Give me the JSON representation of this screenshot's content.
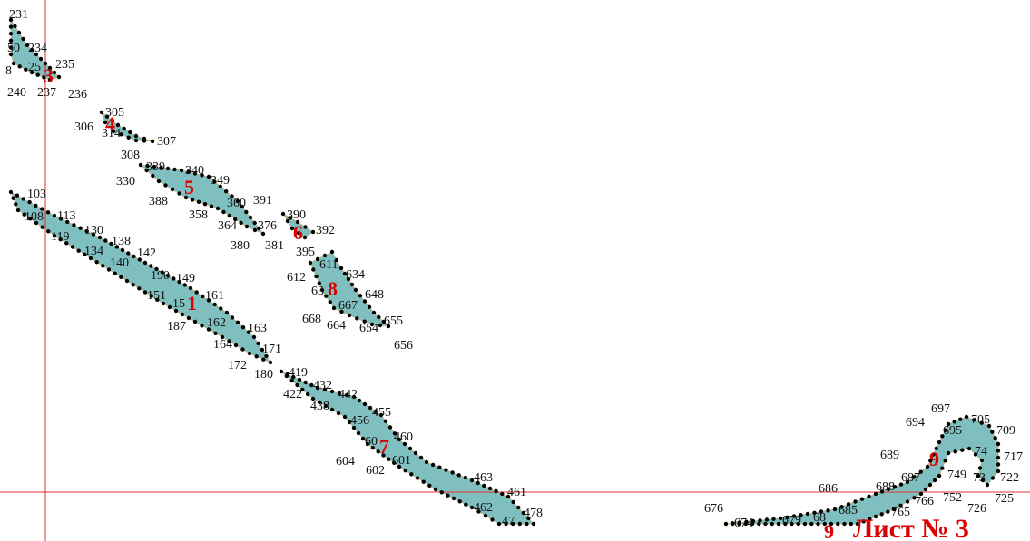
{
  "sheet_label": "Лист № 3",
  "colors": {
    "parcel_fill": "#7fbfbf",
    "grid_line": "#e03030",
    "point": "#000000",
    "label_red": "#dd0000"
  },
  "plot_numbers": [
    "1",
    "3",
    "4",
    "5",
    "6",
    "7",
    "8",
    "9",
    "9"
  ],
  "point_labels": [
    "231",
    "50",
    "234",
    "235",
    "3",
    "8",
    "25",
    "240",
    "237",
    "236",
    "305",
    "306",
    "314",
    "307",
    "308",
    "339",
    "340",
    "330",
    "349",
    "388",
    "358",
    "360",
    "391",
    "364",
    "376",
    "380",
    "381",
    "390",
    "392",
    "395",
    "611",
    "634",
    "612",
    "63",
    "648",
    "667",
    "668",
    "664",
    "655",
    "654",
    "656",
    "103",
    "108",
    "113",
    "119",
    "130",
    "134",
    "138",
    "140",
    "142",
    "190",
    "149",
    "151",
    "15",
    "161",
    "187",
    "162",
    "163",
    "164",
    "171",
    "172",
    "180",
    "419",
    "422",
    "432",
    "442",
    "438",
    "455",
    "456",
    "460",
    "60",
    "604",
    "602",
    "601",
    "463",
    "461",
    "462",
    "47",
    "478",
    "676",
    "674",
    "679",
    "68",
    "686",
    "685",
    "689",
    "688",
    "687",
    "765",
    "766",
    "694",
    "697",
    "705",
    "709",
    "695",
    "74",
    "717",
    "749",
    "73",
    "752",
    "722",
    "726",
    "725"
  ]
}
